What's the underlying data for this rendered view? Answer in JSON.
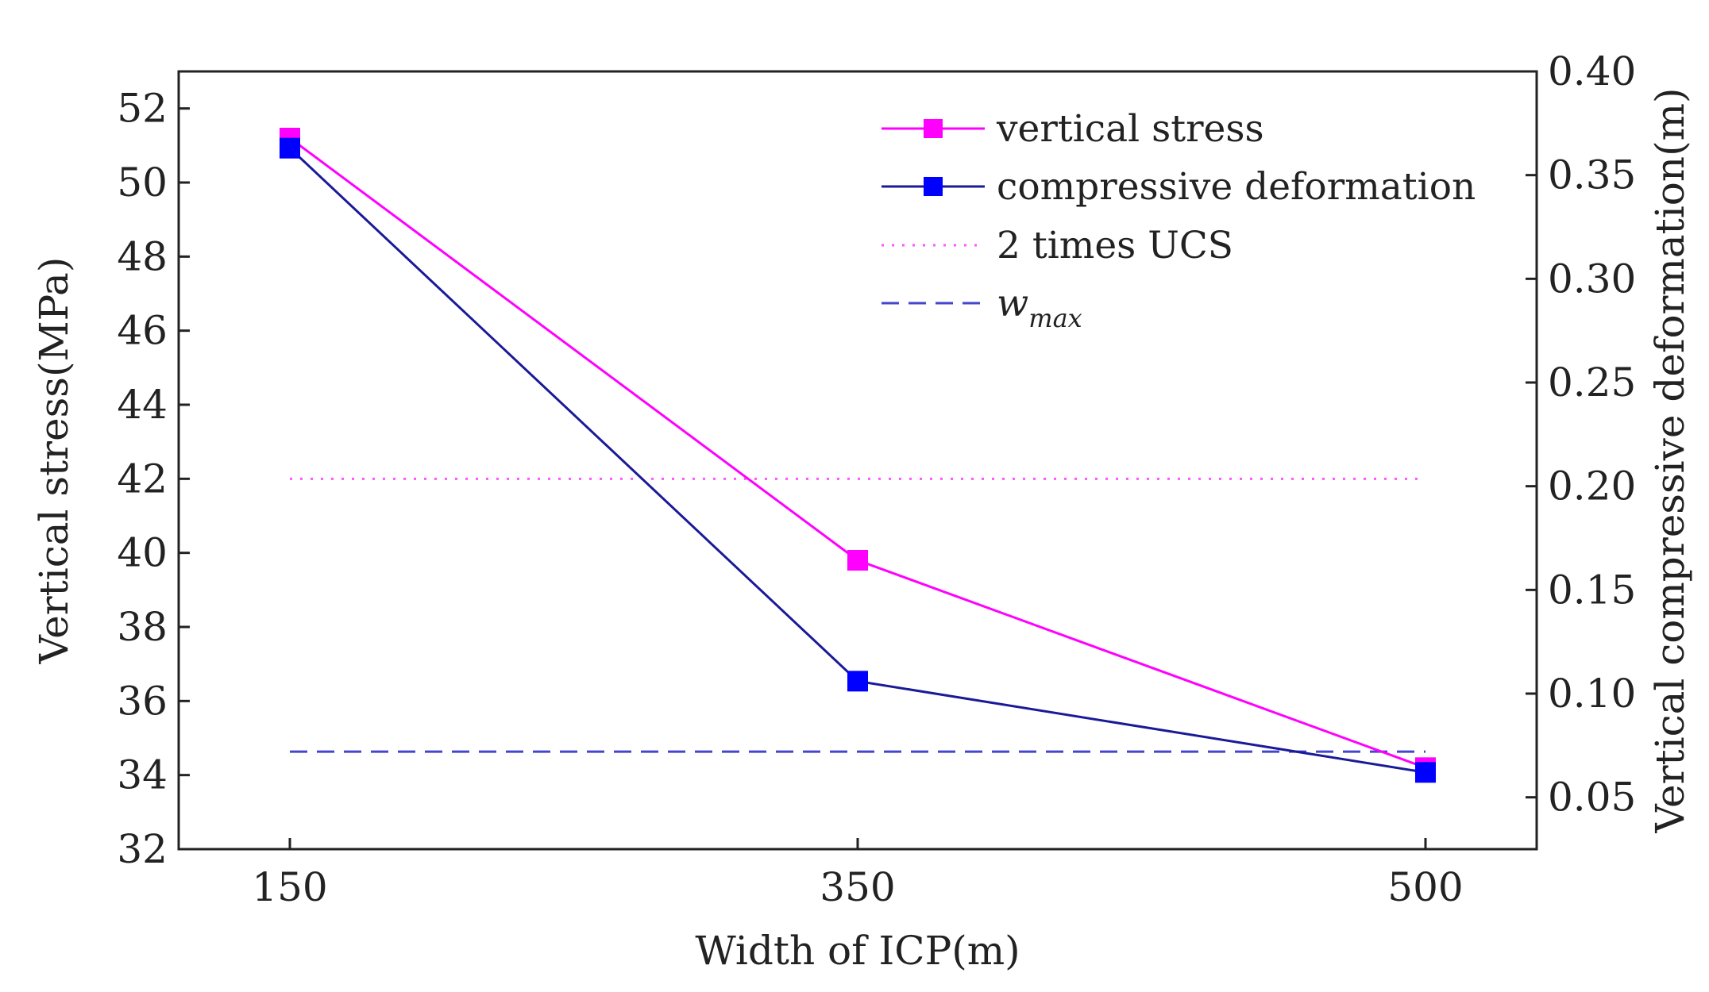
{
  "chart_data": {
    "type": "line",
    "xlabel": "Width of ICP(m)",
    "ylabel": "Vertical stress(MPa)",
    "y2label": "Vertical compressive deformation(m)",
    "categories": [
      "150",
      "350",
      "500"
    ],
    "ylim": [
      32,
      53
    ],
    "y2lim": [
      0.025,
      0.4
    ],
    "yticks": [
      "32",
      "34",
      "36",
      "38",
      "40",
      "42",
      "44",
      "46",
      "48",
      "50",
      "52"
    ],
    "y2ticks": [
      "0.05",
      "0.10",
      "0.15",
      "0.20",
      "0.25",
      "0.30",
      "0.35",
      "0.40"
    ],
    "series": [
      {
        "name": "vertical stress",
        "axis": "left",
        "color": "#ff00ff",
        "values": [
          51.2,
          39.8,
          34.2
        ]
      },
      {
        "name": "compressive deformation",
        "axis": "right",
        "color": "#0000ff",
        "values": [
          0.363,
          0.106,
          0.062
        ]
      }
    ],
    "reference_lines": [
      {
        "name": "2 times UCS",
        "axis": "left",
        "value": 42,
        "style": "dotted",
        "color": "#ff55ff"
      },
      {
        "name": "w",
        "subscript": "max",
        "axis": "right",
        "value": 0.072,
        "style": "dashed",
        "color": "#4444cc"
      }
    ],
    "legend_position": "top-right"
  }
}
